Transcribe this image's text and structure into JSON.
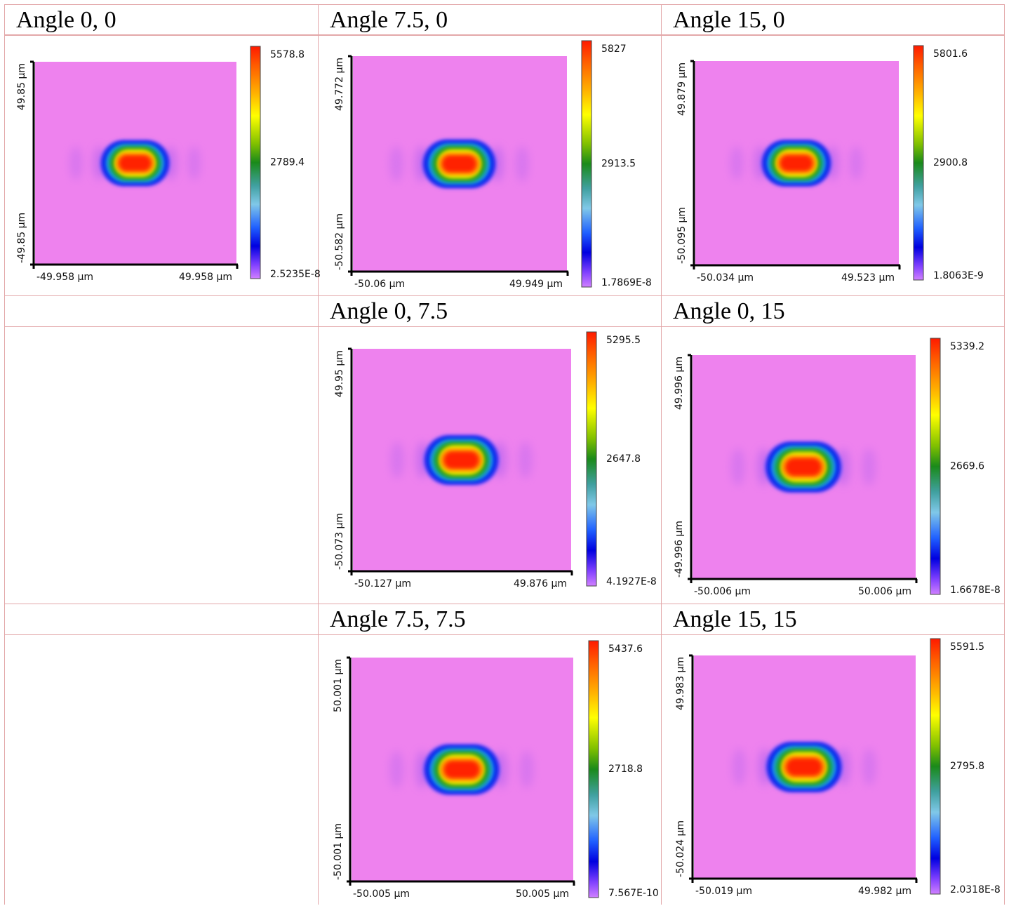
{
  "chart_data": [
    {
      "type": "heatmap",
      "title": "Angle 0, 0",
      "x_range_labels": [
        "-49.958 µm",
        "49.958 µm"
      ],
      "y_range_labels": [
        "49.85 µm",
        "-49.85 µm"
      ],
      "colorbar": {
        "max": "5578.8",
        "mid": "2789.4",
        "min": "2.5235E-8"
      }
    },
    {
      "type": "heatmap",
      "title": "Angle 7.5, 0",
      "x_range_labels": [
        "-50.06 µm",
        "49.949 µm"
      ],
      "y_range_labels": [
        "49.772 µm",
        "-50.582 µm"
      ],
      "colorbar": {
        "max": "5827",
        "mid": "2913.5",
        "min": "1.7869E-8"
      }
    },
    {
      "type": "heatmap",
      "title": "Angle 15, 0",
      "x_range_labels": [
        "-50.034 µm",
        "49.523 µm"
      ],
      "y_range_labels": [
        "49.879 µm",
        "-50.095 µm"
      ],
      "colorbar": {
        "max": "5801.6",
        "mid": "2900.8",
        "min": "1.8063E-9"
      }
    },
    {
      "type": "heatmap",
      "title": "Angle 0, 7.5",
      "x_range_labels": [
        "-50.127 µm",
        "49.876 µm"
      ],
      "y_range_labels": [
        "49.95 µm",
        "-50.073 µm"
      ],
      "colorbar": {
        "max": "5295.5",
        "mid": "2647.8",
        "min": "4.1927E-8"
      }
    },
    {
      "type": "heatmap",
      "title": "Angle 0, 15",
      "x_range_labels": [
        "-50.006 µm",
        "50.006 µm"
      ],
      "y_range_labels": [
        "49.996 µm",
        "-49.996 µm"
      ],
      "colorbar": {
        "max": "5339.2",
        "mid": "2669.6",
        "min": "1.6678E-8"
      }
    },
    {
      "type": "heatmap",
      "title": "Angle 7.5, 7.5",
      "x_range_labels": [
        "-50.005 µm",
        "50.005 µm"
      ],
      "y_range_labels": [
        "50.001 µm",
        "-50.001 µm"
      ],
      "colorbar": {
        "max": "5437.6",
        "mid": "2718.8",
        "min": "7.567E-10"
      }
    },
    {
      "type": "heatmap",
      "title": "Angle 15, 15",
      "x_range_labels": [
        "-50.019 µm",
        "49.982 µm"
      ],
      "y_range_labels": [
        "49.983 µm",
        "-50.024 µm"
      ],
      "colorbar": {
        "max": "5591.5",
        "mid": "2795.8",
        "min": "2.0318E-8"
      }
    }
  ]
}
